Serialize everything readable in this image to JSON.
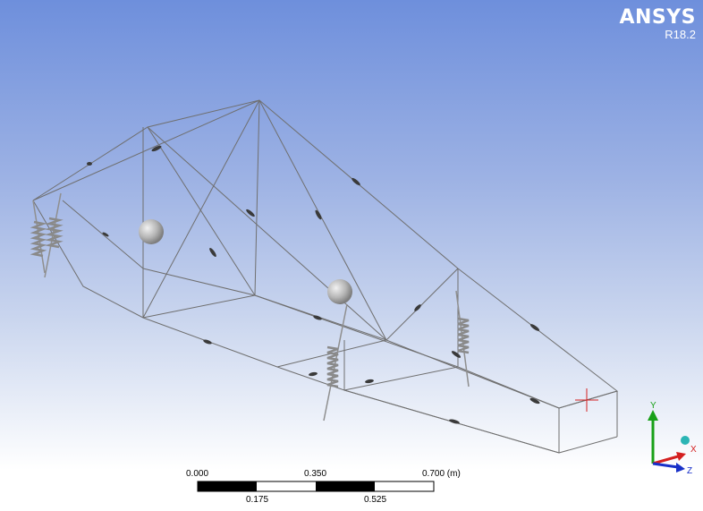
{
  "app": {
    "brand": "ANSYS",
    "version": "R18.2"
  },
  "scale_bar": {
    "labels_top": [
      "0.000",
      "0.350",
      "0.700 (m)"
    ],
    "labels_bottom": [
      "0.175",
      "0.525"
    ]
  },
  "triad": {
    "axis_y": "Y",
    "axis_x": "X",
    "axis_z": "Z"
  },
  "colors": {
    "background_top": "#6e8fdc",
    "background_bottom": "#ffffff",
    "wireframe": "#6f6f6f",
    "spring": "#8f8f8f",
    "mass": "#b9b9b9",
    "marker": "#d42020",
    "axis_x": "#d42020",
    "axis_y": "#18a018",
    "axis_z": "#1830c8"
  }
}
